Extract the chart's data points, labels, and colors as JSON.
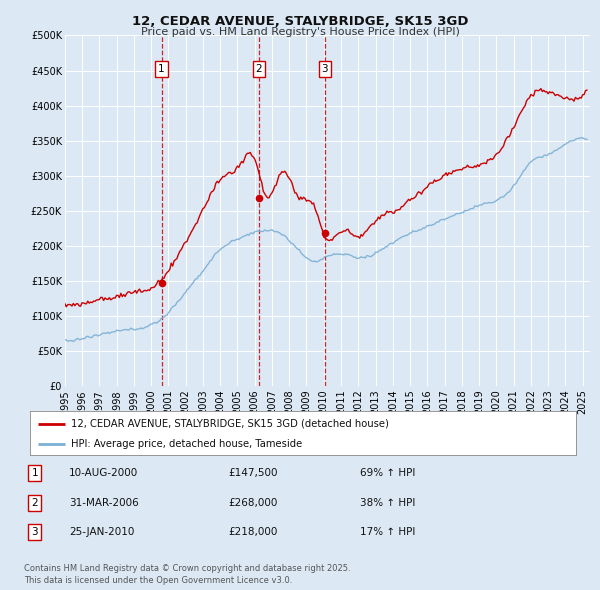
{
  "title": "12, CEDAR AVENUE, STALYBRIDGE, SK15 3GD",
  "subtitle": "Price paid vs. HM Land Registry's House Price Index (HPI)",
  "background_color": "#dce9f5",
  "plot_bg_color": "#dce9f5",
  "red_color": "#cc0000",
  "blue_color": "#7bafd4",
  "grid_color": "#ffffff",
  "ylim": [
    0,
    500000
  ],
  "yticks": [
    0,
    50000,
    100000,
    150000,
    200000,
    250000,
    300000,
    350000,
    400000,
    450000,
    500000
  ],
  "ytick_labels": [
    "£0",
    "£50K",
    "£100K",
    "£150K",
    "£200K",
    "£250K",
    "£300K",
    "£350K",
    "£400K",
    "£450K",
    "£500K"
  ],
  "sale_dates": [
    "2000-08-10",
    "2006-03-31",
    "2010-01-25"
  ],
  "sale_prices": [
    147500,
    268000,
    218000
  ],
  "sale_labels": [
    "1",
    "2",
    "3"
  ],
  "legend_red": "12, CEDAR AVENUE, STALYBRIDGE, SK15 3GD (detached house)",
  "legend_blue": "HPI: Average price, detached house, Tameside",
  "table_rows": [
    [
      "1",
      "10-AUG-2000",
      "£147,500",
      "69% ↑ HPI"
    ],
    [
      "2",
      "31-MAR-2006",
      "£268,000",
      "38% ↑ HPI"
    ],
    [
      "3",
      "25-JAN-2010",
      "£218,000",
      "17% ↑ HPI"
    ]
  ],
  "footer": "Contains HM Land Registry data © Crown copyright and database right 2025.\nThis data is licensed under the Open Government Licence v3.0.",
  "hpi_anchors": {
    "years": [
      1995.0,
      1996.0,
      1997.0,
      1998.0,
      1999.0,
      2000.0,
      2001.0,
      2002.0,
      2003.0,
      2004.0,
      2005.0,
      2006.5,
      2007.5,
      2008.5,
      2009.5,
      2010.0,
      2011.0,
      2012.0,
      2013.0,
      2014.0,
      2015.0,
      2016.0,
      2017.0,
      2018.0,
      2019.0,
      2020.0,
      2021.0,
      2022.0,
      2023.0,
      2024.0,
      2025.2
    ],
    "values": [
      65000,
      68000,
      73000,
      78000,
      82000,
      88000,
      105000,
      135000,
      165000,
      195000,
      210000,
      222000,
      218000,
      195000,
      178000,
      183000,
      188000,
      183000,
      190000,
      205000,
      218000,
      228000,
      238000,
      248000,
      258000,
      265000,
      285000,
      320000,
      330000,
      345000,
      352000
    ]
  },
  "red_anchors": {
    "years": [
      1995.0,
      1996.0,
      1997.0,
      1998.0,
      1999.0,
      2000.0,
      2001.0,
      2002.0,
      2003.0,
      2004.0,
      2005.0,
      2006.0,
      2006.75,
      2007.5,
      2008.0,
      2008.5,
      2009.5,
      2010.0,
      2011.0,
      2012.0,
      2013.0,
      2014.0,
      2015.0,
      2016.0,
      2017.0,
      2018.0,
      2019.0,
      2020.0,
      2021.0,
      2022.0,
      2023.0,
      2024.0,
      2025.2
    ],
    "values": [
      115000,
      118000,
      123000,
      128000,
      133000,
      140000,
      165000,
      205000,
      250000,
      295000,
      310000,
      325000,
      268000,
      305000,
      295000,
      270000,
      255000,
      215000,
      220000,
      215000,
      235000,
      250000,
      265000,
      285000,
      300000,
      310000,
      315000,
      330000,
      370000,
      415000,
      420000,
      410000,
      420000
    ]
  }
}
